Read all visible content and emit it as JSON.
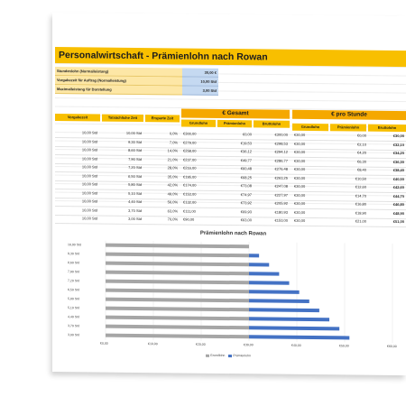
{
  "title": "Personalwirtschaft - Prämienlohn nach Rowan",
  "params": [
    {
      "label": "Stundenlohn (Normalleistung)",
      "value": "30,00 €"
    },
    {
      "label": "Vorgabezeit für Auftrag (Normalleistung)",
      "value": "10,00 Std"
    },
    {
      "label": "Maximalleistung für Darstellung",
      "value": "3,00 Std"
    }
  ],
  "table": {
    "group_headers": {
      "gesamt": "€ Gesamt",
      "pro_stunde": "€ pro Stunde"
    },
    "left_headers": [
      "Vorgabezeit",
      "Tatsächliche Zeit",
      "Ersparte Zeit"
    ],
    "gesamt_headers": [
      "Grundlohn",
      "Prämienlohn",
      "Bruttolohn"
    ],
    "stunde_headers": [
      "Grundlohn",
      "Prämienlohn",
      "Bruttolohn"
    ],
    "rows": [
      [
        "10,00 Std",
        "10,00 Std",
        "0,0%",
        "€300,00",
        "€0,00",
        "€300,00",
        "€30,00",
        "€0,00",
        "€30,00"
      ],
      [
        "10,00 Std",
        "9,30 Std",
        "7,0%",
        "€279,00",
        "€19,53",
        "€298,53",
        "€30,00",
        "€2,10",
        "€32,10"
      ],
      [
        "10,00 Std",
        "8,60 Std",
        "14,0%",
        "€258,00",
        "€36,12",
        "€294,12",
        "€30,00",
        "€4,20",
        "€34,20"
      ],
      [
        "10,00 Std",
        "7,90 Std",
        "21,0%",
        "€237,00",
        "€49,77",
        "€286,77",
        "€30,00",
        "€6,30",
        "€36,30"
      ],
      [
        "10,00 Std",
        "7,20 Std",
        "28,0%",
        "€216,00",
        "€60,48",
        "€276,48",
        "€30,00",
        "€8,40",
        "€38,40"
      ],
      [
        "10,00 Std",
        "6,50 Std",
        "35,0%",
        "€195,00",
        "€68,25",
        "€263,25",
        "€30,00",
        "€10,50",
        "€40,50"
      ],
      [
        "10,00 Std",
        "5,80 Std",
        "42,0%",
        "€174,00",
        "€73,08",
        "€247,08",
        "€30,00",
        "€12,60",
        "€42,60"
      ],
      [
        "10,00 Std",
        "5,10 Std",
        "49,0%",
        "€153,00",
        "€74,97",
        "€227,97",
        "€30,00",
        "€14,70",
        "€44,70"
      ],
      [
        "10,00 Std",
        "4,40 Std",
        "56,0%",
        "€132,00",
        "€73,92",
        "€205,92",
        "€30,00",
        "€16,80",
        "€46,80"
      ],
      [
        "10,00 Std",
        "3,70 Std",
        "63,0%",
        "€111,00",
        "€69,93",
        "€180,93",
        "€30,00",
        "€18,90",
        "€48,90"
      ],
      [
        "10,00 Std",
        "3,00 Std",
        "70,0%",
        "€90,00",
        "€63,00",
        "€153,00",
        "€30,00",
        "€21,00",
        "€51,00"
      ]
    ]
  },
  "chart_data": {
    "type": "bar",
    "orientation": "horizontal",
    "stacked": true,
    "title": "Prämienlohn nach Rowan",
    "categories": [
      "3,00 Std",
      "3,70 Std",
      "4,40 Std",
      "5,10 Std",
      "5,80 Std",
      "6,50 Std",
      "7,20 Std",
      "7,90 Std",
      "8,60 Std",
      "9,30 Std",
      "10,00 Std"
    ],
    "series": [
      {
        "name": "Grundlohn",
        "color": "#a6a6a6",
        "values": [
          30,
          30,
          30,
          30,
          30,
          30,
          30,
          30,
          30,
          30,
          30
        ]
      },
      {
        "name": "Prämienlohn",
        "color": "#4472c4",
        "values": [
          21.0,
          18.9,
          16.8,
          14.7,
          12.6,
          10.5,
          8.4,
          6.3,
          4.2,
          2.1,
          0
        ]
      }
    ],
    "x_ticks": [
      "€0,00",
      "€10,00",
      "€20,00",
      "€30,00",
      "€40,00",
      "€50,00",
      "€60,00"
    ],
    "xlim": [
      0,
      60
    ],
    "legend": "bottom"
  }
}
